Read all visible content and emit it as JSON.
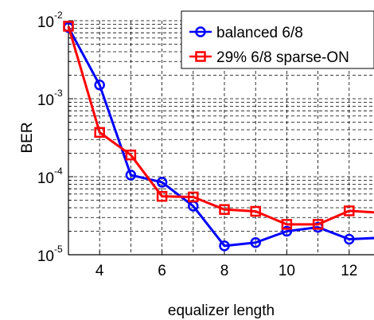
{
  "chart_data": {
    "type": "line",
    "title": "",
    "xlabel": "equalizer length",
    "ylabel": "BER",
    "x_scale": "linear",
    "y_scale": "log",
    "xlim": [
      3,
      13
    ],
    "ylim": [
      1e-05,
      0.01
    ],
    "x_ticks": [
      4,
      6,
      8,
      10,
      12
    ],
    "x_tick_labels": [
      "4",
      "6",
      "8",
      "10",
      "12"
    ],
    "y_ticks": [
      {
        "value": 1e-05,
        "base": "10",
        "exp": "-5"
      },
      {
        "value": 0.0001,
        "base": "10",
        "exp": "-4"
      },
      {
        "value": 0.001,
        "base": "10",
        "exp": "-3"
      },
      {
        "value": 0.01,
        "base": "10",
        "exp": "-2"
      }
    ],
    "grid": true,
    "legend_position": "top-right",
    "series": [
      {
        "name": "balanced 6/8",
        "color": "#0000ff",
        "marker": "circle",
        "x": [
          3,
          4,
          5,
          6,
          7,
          8,
          9,
          10,
          11,
          12,
          13
        ],
        "y": [
          0.0082,
          0.0015,
          0.000105,
          8.5e-05,
          4.2e-05,
          1.3e-05,
          1.43e-05,
          2e-05,
          2.25e-05,
          1.58e-05,
          1.65e-05
        ]
      },
      {
        "name": "29% 6/8 sparse-ON",
        "color": "#ff0000",
        "marker": "square",
        "x": [
          3,
          4,
          5,
          6,
          7,
          8,
          9,
          10,
          11,
          12,
          13
        ],
        "y": [
          0.0085,
          0.00037,
          0.00019,
          5.6e-05,
          5.5e-05,
          3.8e-05,
          3.6e-05,
          2.45e-05,
          2.45e-05,
          3.65e-05,
          3.45e-05
        ]
      }
    ]
  }
}
